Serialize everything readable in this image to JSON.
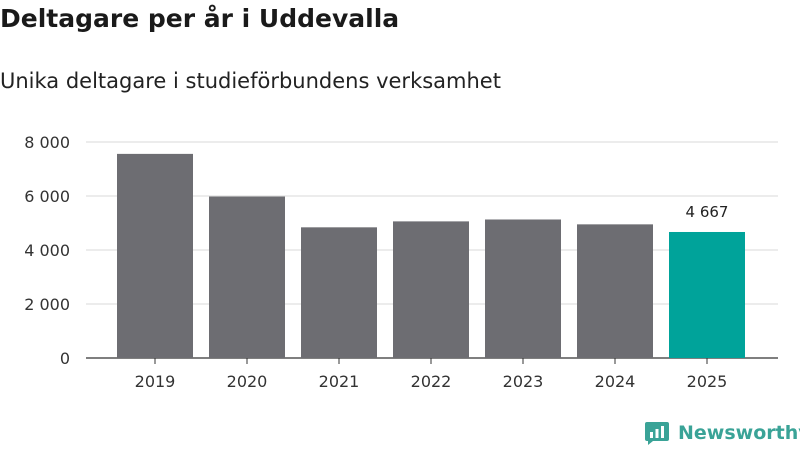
{
  "title": "Deltagare per år i Uddevalla",
  "subtitle": "Unika deltagare i studieförbundens verksamhet",
  "brand": {
    "name": "Newsworthy",
    "color": "#3aa397"
  },
  "chart_data": {
    "type": "bar",
    "categories": [
      "2019",
      "2020",
      "2021",
      "2022",
      "2023",
      "2024",
      "2025"
    ],
    "values": [
      7560,
      5980,
      4840,
      5060,
      5130,
      4950,
      4667
    ],
    "value_labels": [
      "",
      "",
      "",
      "",
      "",
      "",
      "4 667"
    ],
    "highlight_index": 6,
    "bar_color": "#6d6d72",
    "highlight_color": "#00a39a",
    "ylim": [
      0,
      8000
    ],
    "yticks": [
      0,
      2000,
      4000,
      6000,
      8000
    ],
    "ytick_labels": [
      "0",
      "2 000",
      "4 000",
      "6 000",
      "8 000"
    ],
    "grid": true,
    "xlabel": "",
    "ylabel": ""
  }
}
